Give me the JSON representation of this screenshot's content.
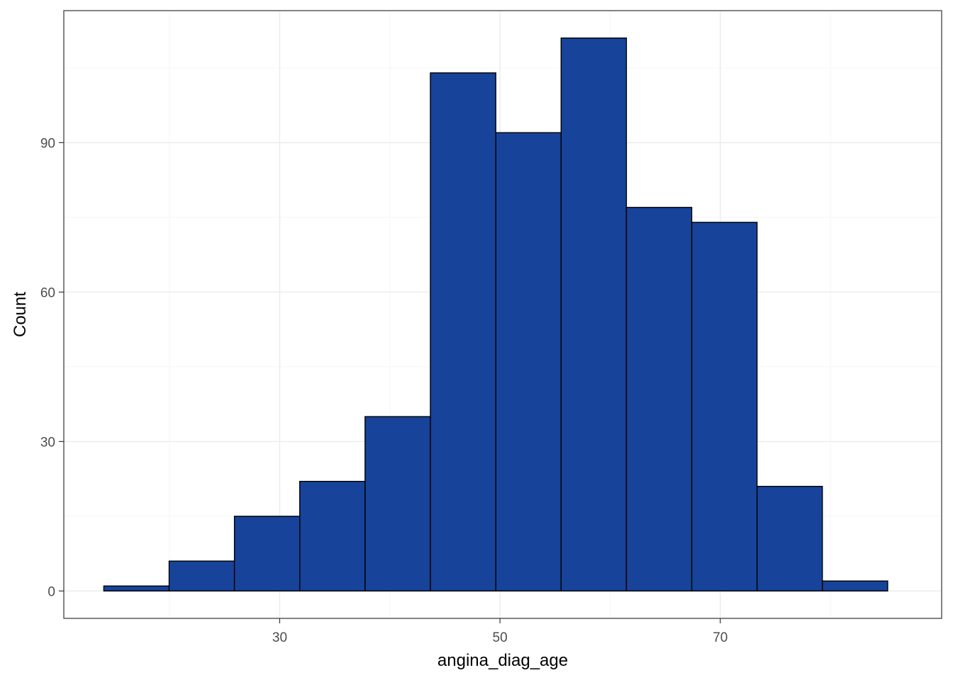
{
  "chart_data": {
    "type": "bar",
    "subtype": "histogram",
    "xlabel": "angina_diag_age",
    "ylabel": "Count",
    "xlim": [
      10.4,
      90.1
    ],
    "ylim": [
      -5.5,
      116.5
    ],
    "x_ticks": [
      30,
      50,
      70
    ],
    "y_ticks": [
      0,
      30,
      60,
      90
    ],
    "grid": true,
    "legend": "none",
    "bin_edges": [
      14.03,
      19.96,
      25.89,
      31.82,
      37.75,
      43.68,
      49.62,
      55.55,
      61.48,
      67.41,
      73.34,
      79.27,
      85.2
    ],
    "values": [
      1,
      6,
      15,
      22,
      35,
      104,
      92,
      111,
      77,
      74,
      21,
      2
    ],
    "colors": {
      "fill": "#17439a",
      "outline": "#000000",
      "grid": "#ebebeb",
      "border": "#333333"
    }
  }
}
